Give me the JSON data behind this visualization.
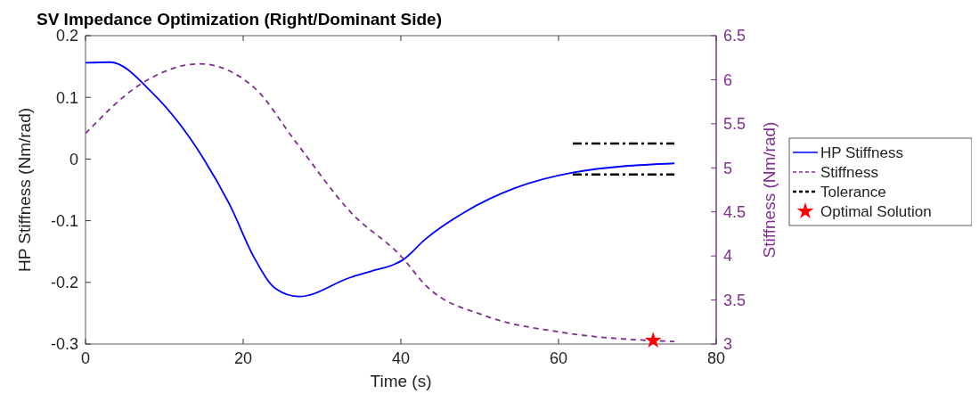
{
  "chart_data": {
    "type": "line",
    "title": "SV Impedance Optimization (Right/Dominant Side)",
    "xlabel": "Time (s)",
    "ylabel": "HP Stiffness (Nm/rad)",
    "y2label": "Stiffness (Nm/rad)",
    "xlim": [
      0,
      80
    ],
    "xticks": [
      0,
      20,
      40,
      60,
      80
    ],
    "ylim": [
      -0.3,
      0.2
    ],
    "yticks": [
      -0.3,
      -0.2,
      -0.1,
      0,
      0.1,
      0.2
    ],
    "y2lim": [
      3,
      6.5
    ],
    "y2ticks": [
      3,
      3.5,
      4,
      4.5,
      5,
      5.5,
      6,
      6.5
    ],
    "legend": "right",
    "grid": false,
    "series": [
      {
        "name": "HP Stiffness",
        "color": "#0000ff",
        "line_style": "solid",
        "x": [
          0,
          3.1,
          8.5,
          15,
          18.4,
          21.4,
          24.1,
          27.1,
          33.6,
          36.2,
          39.3,
          40.2,
          43.1,
          48.1,
          54.5,
          61.8,
          74.7
        ],
        "values": [
          0.156,
          0.157,
          0.107,
          0,
          -0.077,
          -0.16,
          -0.21,
          -0.223,
          -0.192,
          -0.182,
          -0.17,
          -0.164,
          -0.13,
          -0.086,
          -0.047,
          -0.022,
          -0.007
        ]
      },
      {
        "name": "Stiffness",
        "color": "#7e2f8e",
        "line_style": "dashed",
        "axis": "y2",
        "x": [
          0,
          7,
          14.5,
          21.4,
          26.7,
          33.6,
          40.2,
          43.1,
          50.7,
          59.9,
          71.7,
          74.7
        ],
        "values": [
          5.39,
          5.95,
          6.18,
          5.91,
          5.29,
          4.5,
          3.98,
          3.67,
          3.32,
          3.14,
          3.04,
          3.03
        ]
      },
      {
        "name": "Tolerance",
        "color": "#000000",
        "line_style": "dashdot",
        "x": [
          61.8,
          74.7
        ],
        "values": [
          0.025,
          0.025
        ]
      },
      {
        "color": "#000000",
        "line_style": "dashdot",
        "x": [
          61.8,
          74.7
        ],
        "values": [
          -0.025,
          -0.025
        ]
      },
      {
        "name": "Optimal Solution",
        "type": "scatter",
        "marker": "star",
        "color": "#ff0000",
        "axis": "y2",
        "x": [
          72
        ],
        "values": [
          3.04
        ]
      }
    ]
  }
}
